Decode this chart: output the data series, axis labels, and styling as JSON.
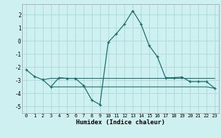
{
  "xlabel": "Humidex (Indice chaleur)",
  "xlim": [
    -0.5,
    23.5
  ],
  "ylim": [
    -5.5,
    2.8
  ],
  "yticks": [
    -5,
    -4,
    -3,
    -2,
    -1,
    0,
    1,
    2
  ],
  "xticks": [
    0,
    1,
    2,
    3,
    4,
    5,
    6,
    7,
    8,
    9,
    10,
    11,
    12,
    13,
    14,
    15,
    16,
    17,
    18,
    19,
    20,
    21,
    22,
    23
  ],
  "bg_color": "#cff0f0",
  "grid_color": "#aad8d8",
  "line_color": "#1a6b6b",
  "s1_x": [
    0,
    1,
    2,
    3,
    4,
    5,
    6,
    7,
    8,
    9,
    10,
    11,
    12,
    13,
    14,
    15,
    16,
    17,
    18,
    19,
    20,
    21,
    22,
    23
  ],
  "s1_y": [
    -2.2,
    -2.7,
    -2.95,
    -3.5,
    -2.8,
    -2.85,
    -2.85,
    -3.4,
    -4.5,
    -4.85,
    -0.1,
    0.55,
    1.3,
    2.3,
    1.3,
    -0.35,
    -1.2,
    -2.8,
    -2.8,
    -2.75,
    -3.1,
    -3.1,
    -3.1,
    -3.6
  ],
  "s2_x": [
    2,
    3,
    4,
    5,
    6,
    7,
    8,
    9,
    10,
    11,
    12,
    13,
    14,
    15,
    16,
    17,
    18,
    19,
    20,
    21,
    22,
    23
  ],
  "s2_y": [
    -2.95,
    -2.85,
    -2.85,
    -2.85,
    -2.85,
    -2.85,
    -2.85,
    -2.85,
    -2.85,
    -2.85,
    -2.85,
    -2.85,
    -2.85,
    -2.85,
    -2.85,
    -2.85,
    -2.85,
    -2.85,
    -2.85,
    -2.85,
    -2.85,
    -2.85
  ],
  "s3_x": [
    3,
    4,
    5,
    6,
    7,
    8,
    9,
    10,
    11,
    12,
    13,
    14,
    15,
    16,
    17,
    18,
    19,
    20,
    21,
    22,
    23
  ],
  "s3_y": [
    -3.5,
    -3.5,
    -3.5,
    -3.5,
    -3.5,
    -3.5,
    -3.5,
    -3.5,
    -3.5,
    -3.5,
    -3.5,
    -3.5,
    -3.5,
    -3.5,
    -3.5,
    -3.5,
    -3.5,
    -3.5,
    -3.5,
    -3.5,
    -3.6
  ]
}
